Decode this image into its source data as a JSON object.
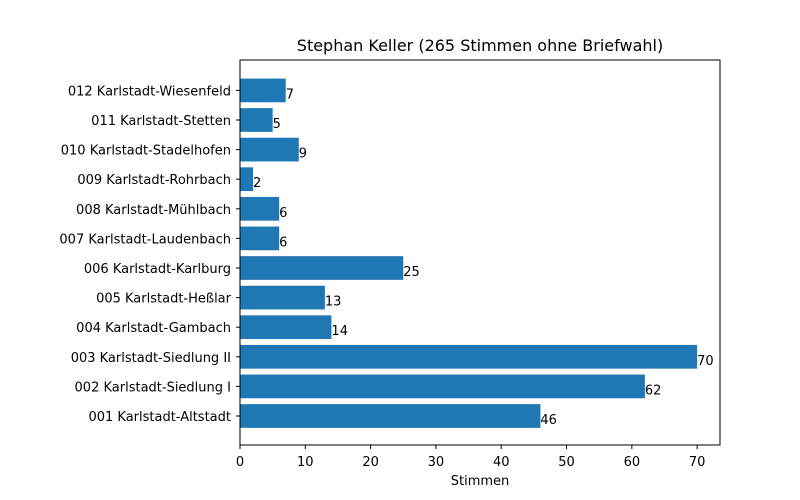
{
  "chart_data": {
    "type": "bar",
    "orientation": "horizontal",
    "title": "Stephan Keller (265 Stimmen ohne Briefwahl)",
    "xlabel": "Stimmen",
    "ylabel": "",
    "xlim": [
      0,
      73.5
    ],
    "xticks": [
      0,
      10,
      20,
      30,
      40,
      50,
      60,
      70
    ],
    "grid": false,
    "bar_color": "#1f77b4",
    "categories": [
      "001 Karlstadt-Altstadt",
      "002 Karlstadt-Siedlung I",
      "003 Karlstadt-Siedlung II",
      "004 Karlstadt-Gambach",
      "005 Karlstadt-Heßlar",
      "006 Karlstadt-Karlburg",
      "007 Karlstadt-Laudenbach",
      "008 Karlstadt-Mühlbach",
      "009 Karlstadt-Rohrbach",
      "010 Karlstadt-Stadelhofen",
      "011 Karlstadt-Stetten",
      "012 Karlstadt-Wiesenfeld"
    ],
    "values": [
      46,
      62,
      70,
      14,
      13,
      25,
      6,
      6,
      2,
      9,
      5,
      7
    ]
  }
}
